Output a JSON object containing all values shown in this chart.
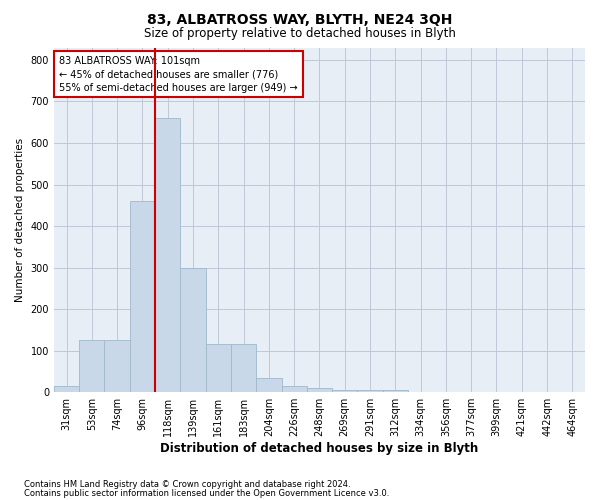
{
  "title": "83, ALBATROSS WAY, BLYTH, NE24 3QH",
  "subtitle": "Size of property relative to detached houses in Blyth",
  "xlabel": "Distribution of detached houses by size in Blyth",
  "ylabel": "Number of detached properties",
  "annotation_line1": "83 ALBATROSS WAY: 101sqm",
  "annotation_line2": "← 45% of detached houses are smaller (776)",
  "annotation_line3": "55% of semi-detached houses are larger (949) →",
  "footer_line1": "Contains HM Land Registry data © Crown copyright and database right 2024.",
  "footer_line2": "Contains public sector information licensed under the Open Government Licence v3.0.",
  "bin_labels": [
    "31sqm",
    "53sqm",
    "74sqm",
    "96sqm",
    "118sqm",
    "139sqm",
    "161sqm",
    "183sqm",
    "204sqm",
    "226sqm",
    "248sqm",
    "269sqm",
    "291sqm",
    "312sqm",
    "334sqm",
    "356sqm",
    "377sqm",
    "399sqm",
    "421sqm",
    "442sqm",
    "464sqm"
  ],
  "bar_values": [
    15,
    125,
    125,
    460,
    660,
    300,
    115,
    115,
    35,
    15,
    10,
    5,
    5,
    5,
    0,
    0,
    0,
    0,
    0,
    0,
    0
  ],
  "bar_color": "#c8d8e8",
  "bar_edge_color": "#a0b8cc",
  "vline_color": "#cc0000",
  "grid_color": "#c0c8d8",
  "bg_color": "#e8eef6",
  "ylim": [
    0,
    830
  ],
  "yticks": [
    0,
    100,
    200,
    300,
    400,
    500,
    600,
    700,
    800
  ],
  "title_fontsize": 10,
  "subtitle_fontsize": 8.5,
  "xlabel_fontsize": 8.5,
  "ylabel_fontsize": 7.5,
  "tick_fontsize": 7,
  "annotation_fontsize": 7,
  "footer_fontsize": 6
}
